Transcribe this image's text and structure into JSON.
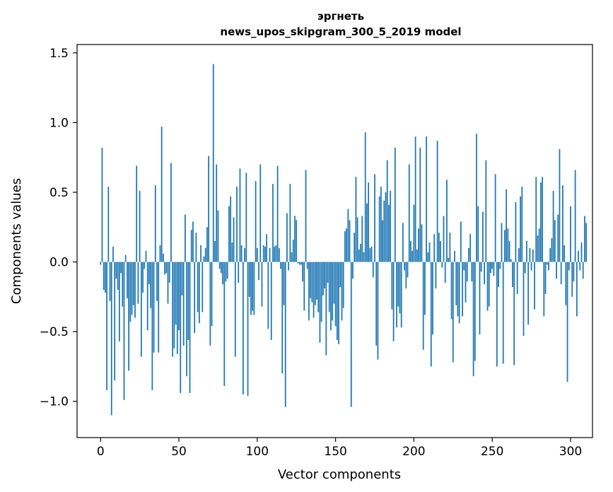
{
  "chart_data": {
    "type": "bar",
    "title": "эргнеть",
    "subtitle": "news_upos_skipgram_300_5_2019 model",
    "xlabel": "Vector components",
    "ylabel": "Components values",
    "xlim": [
      -15,
      314
    ],
    "ylim": [
      -1.26,
      1.56
    ],
    "xticks": [
      0,
      50,
      100,
      150,
      200,
      250,
      300
    ],
    "xtick_labels": [
      "0",
      "50",
      "100",
      "150",
      "200",
      "250",
      "300"
    ],
    "yticks": [
      -1.0,
      -0.5,
      0.0,
      0.5,
      1.0,
      1.5
    ],
    "ytick_labels": [
      "−1.0",
      "−0.5",
      "0.0",
      "0.5",
      "1.0",
      "1.5"
    ],
    "bar_color": "#1f77b4",
    "grid": false,
    "legend": "none",
    "values": [
      -0.02,
      0.82,
      -0.2,
      -0.22,
      -0.92,
      0.54,
      -0.28,
      -1.1,
      0.11,
      -0.85,
      -0.12,
      -0.2,
      -0.57,
      -0.08,
      -0.32,
      -0.99,
      0.05,
      -0.26,
      -0.78,
      -0.43,
      -0.38,
      -0.31,
      -0.4,
      0.69,
      -0.3,
      0.51,
      -0.68,
      -0.22,
      -0.05,
      0.08,
      -0.49,
      -0.16,
      -0.33,
      -0.92,
      -0.65,
      0.55,
      -0.28,
      -0.65,
      0.12,
      0.97,
      0.06,
      -0.09,
      -0.08,
      -0.3,
      -0.15,
      0.71,
      -0.68,
      -0.62,
      -0.45,
      -0.66,
      -0.49,
      -0.94,
      -0.24,
      -0.6,
      0.34,
      -0.82,
      -0.56,
      -0.94,
      0.23,
      0.29,
      -0.51,
      0.21,
      -0.36,
      -0.44,
      0.12,
      -0.36,
      0.04,
      0.1,
      0.25,
      0.76,
      -0.6,
      -0.46,
      1.42,
      0.15,
      0.7,
      0.37,
      -0.05,
      -0.08,
      -0.16,
      -0.89,
      -0.14,
      -0.12,
      0.4,
      0.47,
      0.14,
      0.32,
      -0.68,
      0.54,
      -0.15,
      0.67,
      0.12,
      -0.95,
      0.1,
      0.64,
      -0.96,
      -0.25,
      -0.38,
      -0.35,
      -0.38,
      0.58,
      0.1,
      -0.13,
      0.7,
      -0.32,
      0.12,
      0.11,
      0.2,
      -0.48,
      0.1,
      -0.56,
      0.56,
      0.11,
      0.12,
      0.69,
      0.1,
      -0.05,
      -0.8,
      -0.31,
      -1.04,
      0.35,
      -0.06,
      0.56,
      0.07,
      0.16,
      0.33,
      0.3,
      -0.01,
      -0.02,
      -0.02,
      -0.14,
      -0.35,
      0.66,
      -0.05,
      -0.42,
      -0.26,
      -0.29,
      -0.4,
      -0.31,
      -0.27,
      -0.36,
      -0.58,
      -0.43,
      -0.24,
      -0.19,
      -0.67,
      -0.15,
      -0.36,
      -0.49,
      -0.42,
      -0.3,
      -0.46,
      -0.56,
      -0.59,
      -0.18,
      -0.42,
      -0.33,
      0.22,
      0.24,
      0.38,
      0.3,
      -1.04,
      -0.12,
      0.21,
      0.61,
      0.32,
      0.09,
      0.13,
      0.33,
      0.07,
      0.93,
      0.42,
      0.57,
      0.1,
      0.11,
      -0.11,
      0.63,
      -0.6,
      -0.7,
      0.47,
      0.54,
      0.3,
      0.44,
      0.5,
      0.73,
      0.41,
      0.51,
      -0.34,
      -0.57,
      0.82,
      -0.47,
      -0.32,
      -0.37,
      -0.47,
      0.28,
      -0.06,
      -0.19,
      -0.11,
      0.7,
      0.15,
      0.08,
      0.41,
      0.9,
      0.09,
      0.24,
      0.82,
      0.27,
      -0.63,
      -0.38,
      0.9,
      0.07,
      0.14,
      -0.75,
      -0.52,
      0.2,
      -0.19,
      0.87,
      0.21,
      0.15,
      -0.04,
      0.33,
      -0.15,
      0.59,
      0.03,
      0.21,
      -0.41,
      -0.72,
      0.08,
      -0.31,
      -0.39,
      -0.44,
      0.29,
      -0.39,
      -0.06,
      -0.29,
      -0.14,
      0.1,
      0.2,
      -0.14,
      -0.82,
      -0.71,
      0.92,
      0.4,
      -0.52,
      -0.07,
      0.36,
      -0.16,
      0.73,
      -0.35,
      -0.32,
      -0.08,
      -0.05,
      -0.1,
      0.63,
      -0.75,
      -0.18,
      -0.05,
      0.28,
      -0.73,
      0.23,
      0.52,
      0.24,
      0.15,
      0.02,
      -0.18,
      -0.74,
      0.43,
      -0.23,
      0.1,
      0.47,
      0.54,
      -0.53,
      -0.08,
      0.15,
      -0.45,
      0.1,
      -0.06,
      0.09,
      -0.34,
      0.61,
      0.19,
      0.24,
      0.57,
      0.61,
      -0.39,
      -0.23,
      -0.02,
      -0.06,
      0.1,
      0.17,
      0.51,
      0.3,
      -0.12,
      0.34,
      0.81,
      -0.16,
      0.55,
      0.12,
      -0.31,
      -0.86,
      -0.06,
      0.4,
      -0.25,
      -0.14,
      0.66,
      -0.39,
      0.08,
      -0.06,
      0.14,
      -0.12,
      0.33,
      0.28
    ]
  }
}
